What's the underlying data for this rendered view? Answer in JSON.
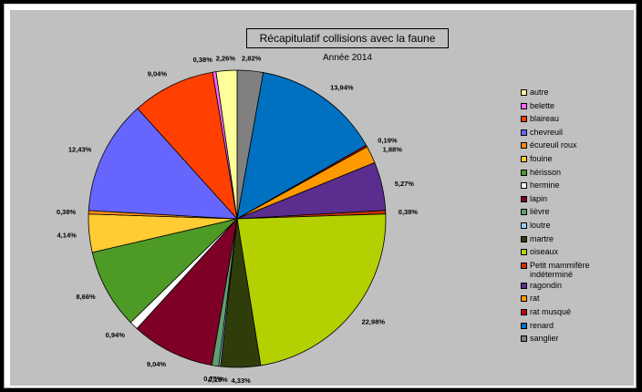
{
  "chart_data": {
    "type": "pie",
    "title": "Récapitulatif collisions avec la faune",
    "subtitle": "Année 2014",
    "slices": [
      {
        "name": "sanglier",
        "value": 2.82,
        "label": "2,82%",
        "color": "#808080"
      },
      {
        "name": "renard",
        "value": 13.94,
        "label": "13,94%",
        "color": "#0070c0"
      },
      {
        "name": "rat musqué",
        "value": 0.19,
        "label": "0,19%",
        "color": "#c00000"
      },
      {
        "name": "rat",
        "value": 1.88,
        "label": "1,88%",
        "color": "#ff9900"
      },
      {
        "name": "ragondin",
        "value": 5.27,
        "label": "5,27%",
        "color": "#5b2d8e"
      },
      {
        "name": "Petit mammifère indéterminé",
        "value": 0.38,
        "label": "0,38%",
        "color": "#cc3300"
      },
      {
        "name": "oiseaux",
        "value": 22.98,
        "label": "22,98%",
        "color": "#b5d000"
      },
      {
        "name": "martre",
        "value": 4.33,
        "label": "4,33%",
        "color": "#2f3d0a"
      },
      {
        "name": "loutre",
        "value": 0.19,
        "label": "0,19%",
        "color": "#99ccff"
      },
      {
        "name": "lièvre",
        "value": 0.75,
        "label": "0,75%",
        "color": "#5f9e6e"
      },
      {
        "name": "lapin",
        "value": 9.04,
        "label": "9,04%",
        "color": "#7f0027"
      },
      {
        "name": "hermine",
        "value": 0.94,
        "label": "0,94%",
        "color": "#ffffff"
      },
      {
        "name": "hérisson",
        "value": 8.66,
        "label": "8,66%",
        "color": "#4e9a26"
      },
      {
        "name": "fouine",
        "value": 4.14,
        "label": "4,14%",
        "color": "#ffcc33"
      },
      {
        "name": "écureuil roux",
        "value": 0.38,
        "label": "0,38%",
        "color": "#ff8c1a"
      },
      {
        "name": "chevreuil",
        "value": 12.43,
        "label": "12,43%",
        "color": "#6666ff"
      },
      {
        "name": "blaireau",
        "value": 9.04,
        "label": "9,04%",
        "color": "#ff4000"
      },
      {
        "name": "belette",
        "value": 0.38,
        "label": "0,38%",
        "color": "#ff66ff"
      },
      {
        "name": "autre",
        "value": 2.26,
        "label": "2,26%",
        "color": "#ffff99"
      }
    ],
    "legend": {
      "position": "right",
      "items": [
        "autre",
        "belette",
        "blaireau",
        "chevreuil",
        "écureuil roux",
        "fouine",
        "hérisson",
        "hermine",
        "lapin",
        "lièvre",
        "loutre",
        "martre",
        "oiseaux",
        "Petit mammifère indéterminé",
        "ragondin",
        "rat",
        "rat musqué",
        "renard",
        "sanglier"
      ]
    }
  }
}
